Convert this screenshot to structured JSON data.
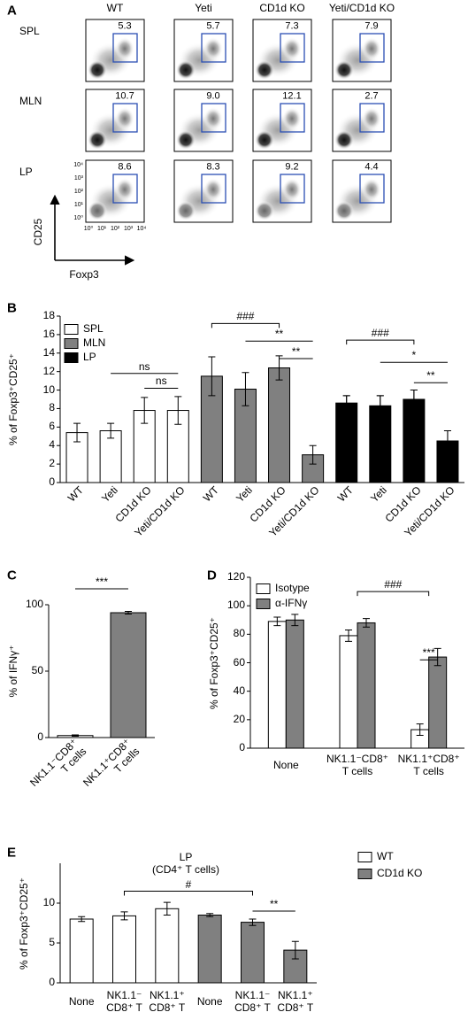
{
  "panel_a": {
    "label": "A",
    "columns": [
      "WT",
      "Yeti",
      "CD1d KO",
      "Yeti/CD1d KO"
    ],
    "rows": [
      "SPL",
      "MLN",
      "LP"
    ],
    "gates": [
      [
        "5.3",
        "5.7",
        "7.3",
        "7.9"
      ],
      [
        "10.7",
        "9.0",
        "12.1",
        "2.7"
      ],
      [
        "8.6",
        "8.3",
        "9.2",
        "4.4"
      ]
    ],
    "decade_labels": [
      "10⁰",
      "10¹",
      "10²",
      "10³",
      "10⁴"
    ],
    "y_axis_label": "CD25",
    "x_axis_label": "Foxp3"
  },
  "chart_data": [
    {
      "label": "B",
      "type": "bar",
      "ylabel": "% of Foxp3⁺CD25⁺",
      "categories": [
        "WT",
        "Yeti",
        "CD1d KO",
        "Yeti/CD1d KO",
        "WT",
        "Yeti",
        "CD1d KO",
        "Yeti/CD1d KO",
        "WT",
        "Yeti",
        "CD1d KO",
        "Yeti/CD1d KO"
      ],
      "ylim": [
        0,
        18
      ],
      "yticks": [
        0,
        2,
        4,
        6,
        8,
        10,
        12,
        14,
        16,
        18
      ],
      "legend": "top-left",
      "series": [
        {
          "name": "SPL",
          "color": "#ffffff",
          "values": [
            5.4,
            5.6,
            7.8,
            7.8,
            null,
            null,
            null,
            null,
            null,
            null,
            null,
            null
          ],
          "errors": [
            1.0,
            0.8,
            1.4,
            1.5,
            null,
            null,
            null,
            null,
            null,
            null,
            null,
            null
          ]
        },
        {
          "name": "MLN",
          "color": "#808080",
          "values": [
            null,
            null,
            null,
            null,
            11.5,
            10.1,
            12.4,
            3.0,
            null,
            null,
            null,
            null
          ],
          "errors": [
            null,
            null,
            null,
            null,
            2.1,
            1.8,
            1.3,
            1.0,
            null,
            null,
            null,
            null
          ]
        },
        {
          "name": "LP",
          "color": "#000000",
          "values": [
            null,
            null,
            null,
            null,
            null,
            null,
            null,
            null,
            8.6,
            8.3,
            9.0,
            4.5
          ],
          "errors": [
            null,
            null,
            null,
            null,
            null,
            null,
            null,
            null,
            0.8,
            1.1,
            1.0,
            1.1
          ]
        }
      ],
      "annotations": [
        {
          "label": "ns",
          "from": 1,
          "to": 3,
          "y": 11.8
        },
        {
          "label": "ns",
          "from": 2,
          "to": 3,
          "y": 10.2
        },
        {
          "label": "###",
          "from": 4,
          "to": 6,
          "y": 17.2
        },
        {
          "label": "**",
          "from": 5,
          "to": 7,
          "y": 15.3
        },
        {
          "label": "**",
          "from": 6,
          "to": 7,
          "y": 13.4
        },
        {
          "label": "###",
          "from": 8,
          "to": 10,
          "y": 15.4
        },
        {
          "label": "*",
          "from": 9,
          "to": 11,
          "y": 13.0
        },
        {
          "label": "**",
          "from": 10,
          "to": 11,
          "y": 10.8
        }
      ]
    },
    {
      "label": "C",
      "type": "bar",
      "ylabel": "% of IFNγ⁺",
      "categories": [
        "NK1.1⁻CD8⁺\nT cells",
        "NK1.1⁺CD8⁺\nT cells"
      ],
      "values": [
        1.5,
        94
      ],
      "errors": [
        0.5,
        1
      ],
      "colors": [
        "#ffffff",
        "#808080"
      ],
      "ylim": [
        0,
        100
      ],
      "yticks": [
        0,
        50,
        100
      ],
      "annotations": [
        {
          "label": "***",
          "from": 0,
          "to": 1,
          "y": 112
        }
      ]
    },
    {
      "label": "D",
      "type": "bar",
      "ylabel": "% of Foxp3⁺CD25⁺",
      "categories": [
        "None",
        "NK1.1⁻CD8⁺\nT cells",
        "NK1.1⁺CD8⁺\nT cells"
      ],
      "ylim": [
        0,
        120
      ],
      "yticks": [
        0,
        20,
        40,
        60,
        80,
        100,
        120
      ],
      "legend": "top-left",
      "series": [
        {
          "name": "Isotype",
          "color": "#ffffff",
          "values": [
            89,
            79,
            13
          ],
          "errors": [
            3,
            4,
            4
          ]
        },
        {
          "name": "α-IFNγ",
          "color": "#808080",
          "values": [
            90,
            88,
            64
          ],
          "errors": [
            4,
            3,
            6
          ]
        }
      ],
      "annotations": [
        {
          "label": "###",
          "from": 1,
          "to": 2,
          "y": 110
        },
        {
          "label": "***",
          "from": [
            2,
            0
          ],
          "to": [
            2,
            1
          ],
          "y": 62
        }
      ]
    },
    {
      "label": "E",
      "type": "bar",
      "subtitle": "LP\n(CD4⁺ T cells)",
      "ylabel": "% of Foxp3⁺CD25⁺",
      "categories": [
        "None",
        "NK1.1⁻\nCD8⁺ T",
        "NK1.1⁺\nCD8⁺ T",
        "None",
        "NK1.1⁻\nCD8⁺ T",
        "NK1.1⁺\nCD8⁺ T"
      ],
      "ylim": [
        0,
        15
      ],
      "yticks": [
        0,
        5,
        10
      ],
      "legend": "top-right",
      "series": [
        {
          "name": "WT",
          "color": "#ffffff",
          "values": [
            8.0,
            8.4,
            9.3,
            null,
            null,
            null
          ],
          "errors": [
            0.3,
            0.5,
            0.8,
            null,
            null,
            null
          ]
        },
        {
          "name": "CD1d KO",
          "color": "#808080",
          "values": [
            null,
            null,
            null,
            8.5,
            7.6,
            4.1
          ],
          "errors": [
            null,
            null,
            null,
            0.2,
            0.4,
            1.1
          ]
        }
      ],
      "annotations": [
        {
          "label": "#",
          "from": 1,
          "to": 4,
          "y": 11.5
        },
        {
          "label": "**",
          "from": 4,
          "to": 5,
          "y": 9.0
        }
      ]
    }
  ]
}
